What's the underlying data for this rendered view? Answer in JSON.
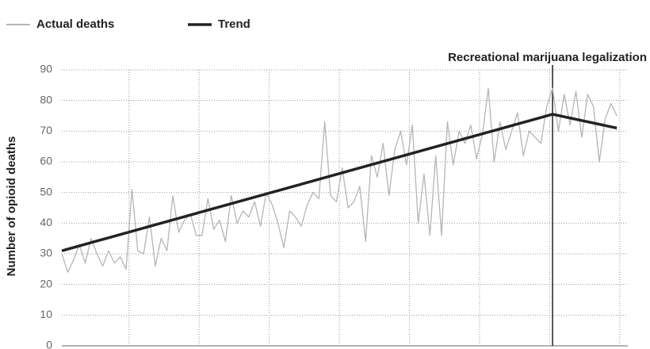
{
  "chart_data": {
    "type": "line",
    "ylabel": "Number of opioid deaths",
    "ylim": [
      0,
      90
    ],
    "yticks": [
      0,
      10,
      20,
      30,
      40,
      50,
      60,
      70,
      80,
      90
    ],
    "grid": true,
    "series": [
      {
        "name": "Actual deaths",
        "color": "#b5b5b5",
        "values": [
          30,
          24,
          28,
          33,
          27,
          35,
          30,
          26,
          31,
          27,
          29,
          25,
          51,
          31,
          30,
          42,
          26,
          35,
          31,
          49,
          37,
          41,
          43,
          36,
          36,
          48,
          38,
          41,
          34,
          49,
          40,
          44,
          42,
          47,
          39,
          50,
          46,
          40,
          32,
          44,
          42,
          39,
          46,
          50,
          48,
          73,
          49,
          47,
          58,
          45,
          47,
          52,
          34,
          62,
          55,
          66,
          49,
          64,
          70,
          59,
          72,
          40,
          56,
          36,
          62,
          36,
          73,
          59,
          70,
          66,
          72,
          61,
          69,
          84,
          60,
          73,
          64,
          70,
          76,
          62,
          70,
          68,
          66,
          78,
          84,
          70,
          82,
          72,
          83,
          68,
          82,
          78,
          60,
          74,
          79,
          75
        ]
      },
      {
        "name": "Trend",
        "color": "#222222",
        "x": [
          0,
          84,
          95
        ],
        "values": [
          31,
          75.5,
          71
        ]
      }
    ],
    "annotation": {
      "text": "Recreational marijuana legalization",
      "x": 84
    }
  }
}
